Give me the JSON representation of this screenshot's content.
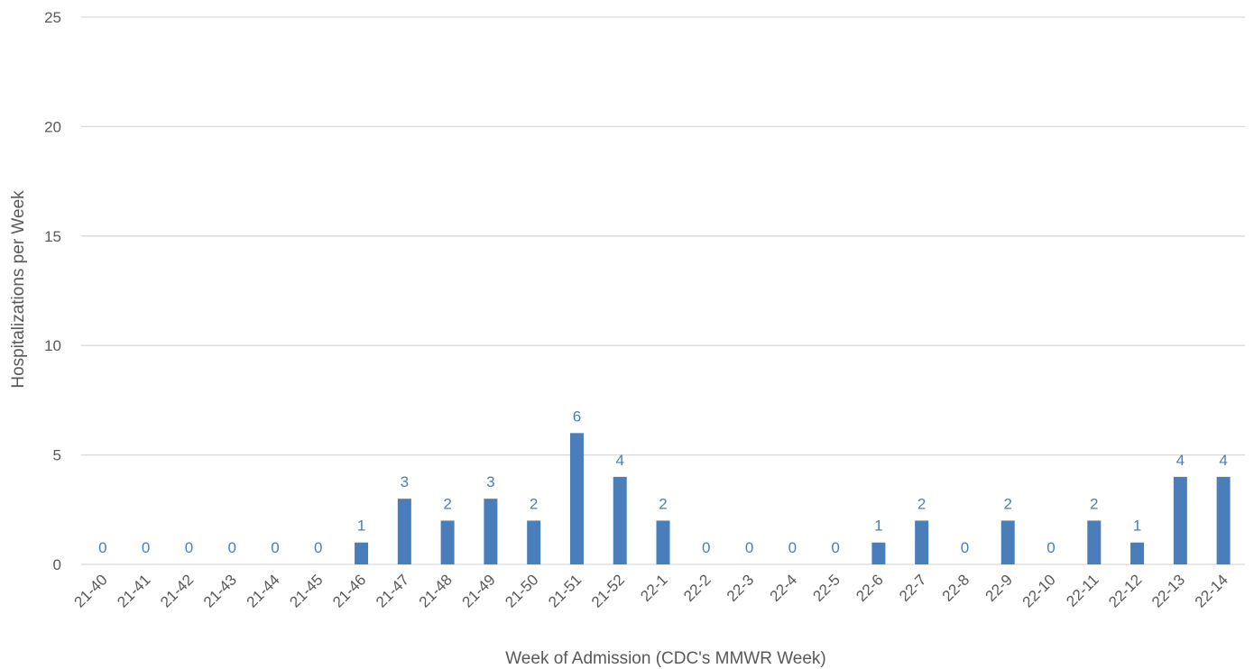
{
  "chart_data": {
    "type": "bar",
    "title": "",
    "xlabel": "Week of Admission (CDC's MMWR Week)",
    "ylabel": "Hospitalizations per Week",
    "ylim": [
      0,
      25
    ],
    "yticks": [
      0,
      5,
      10,
      15,
      20,
      25
    ],
    "grid": true,
    "legend": "none",
    "data_labels": true,
    "categories": [
      "21-40",
      "21-41",
      "21-42",
      "21-43",
      "21-44",
      "21-45",
      "21-46",
      "21-47",
      "21-48",
      "21-49",
      "21-50",
      "21-51",
      "21-52",
      "22-1",
      "22-2",
      "22-3",
      "22-4",
      "22-5",
      "22-6",
      "22-7",
      "22-8",
      "22-9",
      "22-10",
      "22-11",
      "22-12",
      "22-13",
      "22-14"
    ],
    "values": [
      0,
      0,
      0,
      0,
      0,
      0,
      1,
      3,
      2,
      3,
      2,
      6,
      4,
      2,
      0,
      0,
      0,
      0,
      1,
      2,
      0,
      2,
      0,
      2,
      1,
      4,
      4
    ],
    "colors": {
      "bar": "#4a7ebb",
      "data_label": "#4a7ebb",
      "grid": "#d9d9d9",
      "text": "#595959"
    }
  }
}
